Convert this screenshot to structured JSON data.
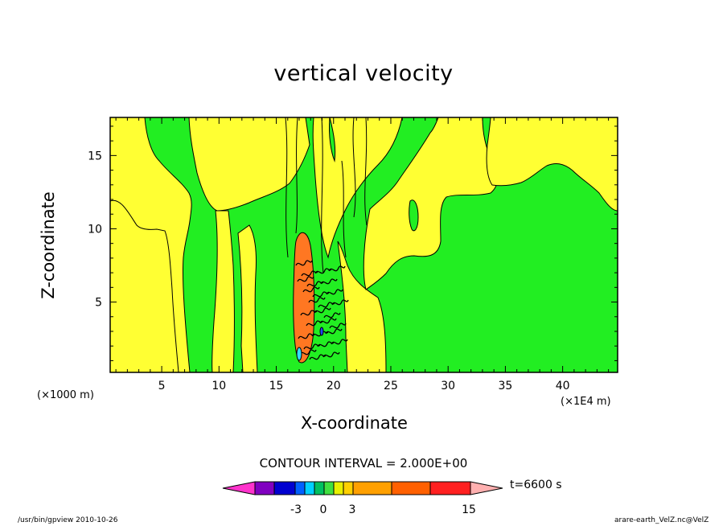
{
  "chart_data": {
    "type": "heatmap",
    "title": "vertical velocity",
    "xlabel": "X-coordinate",
    "ylabel": "Z-coordinate",
    "x_unit_left": "(×1000 m)",
    "x_unit_right": "(×1E4 m)",
    "xlim": [
      0.5,
      44.8
    ],
    "ylim": [
      0.2,
      17.6
    ],
    "xticks": [
      "5",
      "10",
      "15",
      "20",
      "25",
      "30",
      "35",
      "40"
    ],
    "yticks": [
      "5",
      "10",
      "15"
    ],
    "contour_interval": "CONTOUR INTERVAL = 2.000E+00",
    "time_label": "t=6600 s",
    "colorbar": {
      "labels": [
        "-3",
        "0",
        "3",
        "15"
      ],
      "colors": [
        "#ff33cc",
        "#8000c0",
        "#0000d0",
        "#0060ff",
        "#00d0ff",
        "#00c060",
        "#40e040",
        "#e8f000",
        "#ffd000",
        "#ffa000",
        "#ff6000",
        "#ff2020",
        "#ff7070",
        "#ffb0b0"
      ]
    },
    "regions": {
      "green": "#22ee22",
      "yellow": "#ffff33",
      "orange": "#ff7722",
      "cyan": "#33ddff"
    },
    "footer_left": "/usr/bin/gpview   2010-10-26",
    "footer_right": "arare-earth_VelZ.nc@VelZ"
  }
}
